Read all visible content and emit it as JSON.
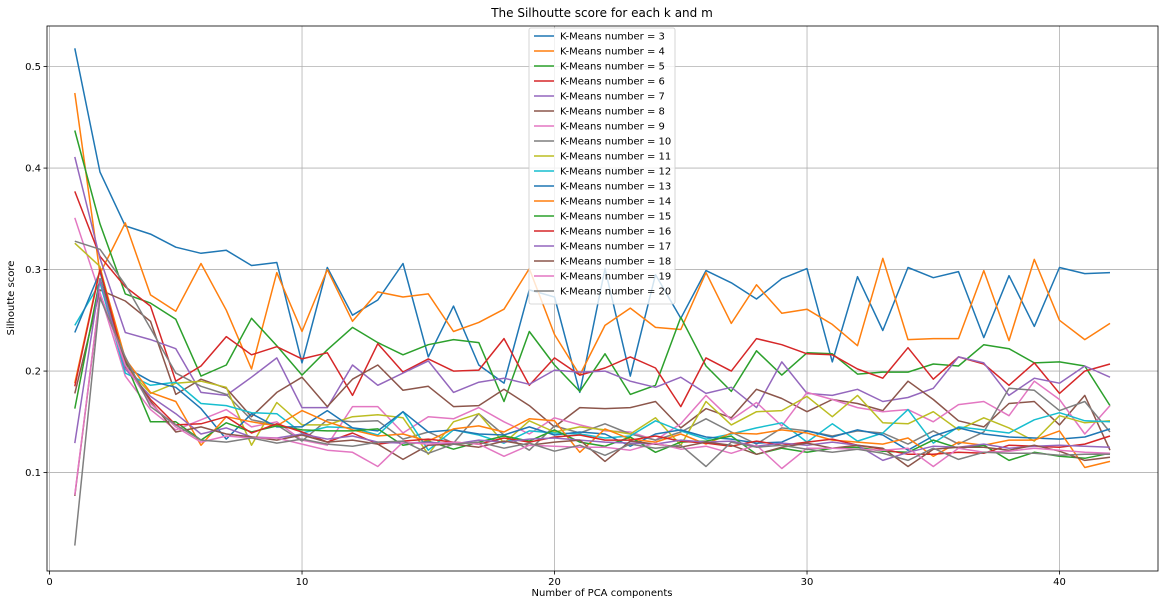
{
  "chart_data": {
    "type": "line",
    "title": "The Silhoutte score for each k and m",
    "xlabel": "Number of PCA components",
    "ylabel": "Silhoutte score",
    "xlim": [
      -0.1,
      43.9
    ],
    "ylim": [
      0.003,
      0.54
    ],
    "xticks": [
      0,
      10,
      20,
      30,
      40
    ],
    "yticks": [
      0.1,
      0.2,
      0.3,
      0.4,
      0.5
    ],
    "grid": true,
    "legend_position": "top-center",
    "x": [
      1,
      2,
      3,
      4,
      5,
      6,
      7,
      8,
      9,
      10,
      11,
      12,
      13,
      14,
      15,
      16,
      17,
      18,
      19,
      20,
      21,
      22,
      23,
      24,
      25,
      26,
      27,
      28,
      29,
      30,
      31,
      32,
      33,
      34,
      35,
      36,
      37,
      38,
      39,
      40,
      41,
      42
    ],
    "series": [
      {
        "name": "K-Means number = 3",
        "color": "#1f77b4",
        "values": [
          0.518,
          0.396,
          0.343,
          0.335,
          0.322,
          0.316,
          0.319,
          0.304,
          0.307,
          0.208,
          0.302,
          0.255,
          0.27,
          0.306,
          0.214,
          0.264,
          0.206,
          0.188,
          0.28,
          0.273,
          0.179,
          0.301,
          0.195,
          0.295,
          0.252,
          0.299,
          0.287,
          0.271,
          0.291,
          0.301,
          0.209,
          0.293,
          0.24,
          0.302,
          0.292,
          0.298,
          0.233,
          0.294,
          0.244,
          0.302,
          0.296,
          0.297
        ]
      },
      {
        "name": "K-Means number = 4",
        "color": "#ff7f0e",
        "values": [
          0.474,
          0.296,
          0.346,
          0.275,
          0.259,
          0.306,
          0.26,
          0.202,
          0.297,
          0.239,
          0.3,
          0.249,
          0.278,
          0.273,
          0.276,
          0.239,
          0.248,
          0.261,
          0.301,
          0.236,
          0.196,
          0.245,
          0.262,
          0.243,
          0.241,
          0.297,
          0.247,
          0.285,
          0.257,
          0.261,
          0.246,
          0.225,
          0.311,
          0.231,
          0.232,
          0.232,
          0.299,
          0.23,
          0.31,
          0.25,
          0.231,
          0.247
        ]
      },
      {
        "name": "K-Means number = 5",
        "color": "#2ca02c",
        "values": [
          0.437,
          0.345,
          0.276,
          0.267,
          0.251,
          0.195,
          0.206,
          0.252,
          0.225,
          0.196,
          0.221,
          0.243,
          0.228,
          0.216,
          0.226,
          0.231,
          0.228,
          0.17,
          0.239,
          0.206,
          0.18,
          0.217,
          0.177,
          0.186,
          0.253,
          0.205,
          0.18,
          0.22,
          0.196,
          0.218,
          0.217,
          0.197,
          0.199,
          0.199,
          0.207,
          0.205,
          0.226,
          0.222,
          0.208,
          0.209,
          0.205,
          0.166
        ]
      },
      {
        "name": "K-Means number = 6",
        "color": "#d62728",
        "values": [
          0.377,
          0.313,
          0.283,
          0.264,
          0.19,
          0.205,
          0.234,
          0.216,
          0.224,
          0.212,
          0.218,
          0.176,
          0.227,
          0.199,
          0.212,
          0.2,
          0.201,
          0.232,
          0.186,
          0.213,
          0.196,
          0.203,
          0.214,
          0.203,
          0.165,
          0.213,
          0.2,
          0.232,
          0.226,
          0.217,
          0.216,
          0.202,
          0.193,
          0.223,
          0.192,
          0.214,
          0.207,
          0.186,
          0.208,
          0.178,
          0.2,
          0.207
        ]
      },
      {
        "name": "K-Means number = 7",
        "color": "#9467bd",
        "values": [
          0.411,
          0.311,
          0.238,
          0.231,
          0.222,
          0.179,
          0.176,
          0.194,
          0.213,
          0.164,
          0.164,
          0.206,
          0.186,
          0.198,
          0.21,
          0.179,
          0.189,
          0.193,
          0.187,
          0.201,
          0.199,
          0.2,
          0.19,
          0.184,
          0.194,
          0.178,
          0.184,
          0.164,
          0.209,
          0.178,
          0.176,
          0.182,
          0.17,
          0.174,
          0.183,
          0.214,
          0.208,
          0.176,
          0.193,
          0.188,
          0.205,
          0.194
        ]
      },
      {
        "name": "K-Means number = 8",
        "color": "#8c564b",
        "values": [
          0.178,
          0.28,
          0.269,
          0.249,
          0.177,
          0.192,
          0.183,
          0.155,
          0.179,
          0.194,
          0.165,
          0.192,
          0.206,
          0.181,
          0.185,
          0.165,
          0.166,
          0.182,
          0.166,
          0.145,
          0.164,
          0.163,
          0.164,
          0.17,
          0.144,
          0.163,
          0.154,
          0.182,
          0.173,
          0.16,
          0.172,
          0.168,
          0.161,
          0.19,
          0.172,
          0.151,
          0.145,
          0.168,
          0.17,
          0.147,
          0.176,
          0.122
        ]
      },
      {
        "name": "K-Means number = 9",
        "color": "#e377c2",
        "values": [
          0.351,
          0.276,
          0.195,
          0.162,
          0.142,
          0.152,
          0.162,
          0.145,
          0.15,
          0.132,
          0.127,
          0.165,
          0.165,
          0.139,
          0.155,
          0.153,
          0.164,
          0.15,
          0.138,
          0.154,
          0.147,
          0.141,
          0.14,
          0.132,
          0.148,
          0.176,
          0.152,
          0.169,
          0.146,
          0.179,
          0.172,
          0.164,
          0.16,
          0.162,
          0.15,
          0.167,
          0.17,
          0.156,
          0.19,
          0.172,
          0.138,
          0.166
        ]
      },
      {
        "name": "K-Means number = 10",
        "color": "#7f7f7f",
        "values": [
          0.328,
          0.32,
          0.285,
          0.242,
          0.198,
          0.185,
          0.177,
          0.152,
          0.147,
          0.131,
          0.152,
          0.15,
          0.151,
          0.133,
          0.14,
          0.129,
          0.158,
          0.137,
          0.122,
          0.146,
          0.139,
          0.148,
          0.138,
          0.132,
          0.14,
          0.153,
          0.14,
          0.128,
          0.144,
          0.141,
          0.136,
          0.141,
          0.139,
          0.128,
          0.141,
          0.128,
          0.14,
          0.183,
          0.181,
          0.161,
          0.17,
          0.14
        ]
      },
      {
        "name": "K-Means number = 11",
        "color": "#bcbd22",
        "values": [
          0.326,
          0.303,
          0.205,
          0.178,
          0.188,
          0.19,
          0.184,
          0.127,
          0.169,
          0.147,
          0.147,
          0.155,
          0.157,
          0.154,
          0.118,
          0.15,
          0.158,
          0.129,
          0.151,
          0.14,
          0.145,
          0.142,
          0.138,
          0.154,
          0.127,
          0.17,
          0.147,
          0.16,
          0.161,
          0.175,
          0.155,
          0.176,
          0.149,
          0.148,
          0.16,
          0.142,
          0.154,
          0.144,
          0.131,
          0.156,
          0.149,
          0.151
        ]
      },
      {
        "name": "K-Means number = 12",
        "color": "#17becf",
        "values": [
          0.245,
          0.287,
          0.198,
          0.186,
          0.189,
          0.168,
          0.166,
          0.159,
          0.158,
          0.139,
          0.145,
          0.144,
          0.137,
          0.16,
          0.122,
          0.142,
          0.137,
          0.129,
          0.141,
          0.139,
          0.138,
          0.134,
          0.136,
          0.151,
          0.141,
          0.133,
          0.138,
          0.144,
          0.149,
          0.13,
          0.148,
          0.131,
          0.139,
          0.162,
          0.129,
          0.145,
          0.142,
          0.139,
          0.152,
          0.159,
          0.151,
          0.15
        ]
      },
      {
        "name": "K-Means number = 13",
        "color": "#1f77b4",
        "values": [
          0.238,
          0.298,
          0.204,
          0.19,
          0.184,
          0.163,
          0.133,
          0.158,
          0.145,
          0.145,
          0.161,
          0.144,
          0.141,
          0.16,
          0.14,
          0.142,
          0.138,
          0.137,
          0.145,
          0.137,
          0.14,
          0.138,
          0.126,
          0.138,
          0.142,
          0.135,
          0.133,
          0.129,
          0.13,
          0.141,
          0.135,
          0.142,
          0.137,
          0.122,
          0.136,
          0.144,
          0.138,
          0.135,
          0.134,
          0.133,
          0.135,
          0.143
        ]
      },
      {
        "name": "K-Means number = 14",
        "color": "#ff7f0e",
        "values": [
          0.188,
          0.301,
          0.212,
          0.179,
          0.17,
          0.127,
          0.155,
          0.15,
          0.146,
          0.161,
          0.15,
          0.142,
          0.136,
          0.138,
          0.131,
          0.143,
          0.146,
          0.14,
          0.153,
          0.151,
          0.12,
          0.143,
          0.133,
          0.13,
          0.138,
          0.128,
          0.139,
          0.138,
          0.142,
          0.139,
          0.132,
          0.13,
          0.128,
          0.134,
          0.116,
          0.13,
          0.127,
          0.132,
          0.132,
          0.141,
          0.105,
          0.111
        ]
      },
      {
        "name": "K-Means number = 15",
        "color": "#2ca02c",
        "values": [
          0.163,
          0.291,
          0.209,
          0.15,
          0.15,
          0.132,
          0.149,
          0.14,
          0.146,
          0.142,
          0.141,
          0.141,
          0.143,
          0.127,
          0.131,
          0.123,
          0.13,
          0.136,
          0.131,
          0.142,
          0.13,
          0.126,
          0.135,
          0.12,
          0.13,
          0.131,
          0.136,
          0.118,
          0.124,
          0.12,
          0.124,
          0.125,
          0.121,
          0.12,
          0.132,
          0.124,
          0.127,
          0.112,
          0.12,
          0.116,
          0.114,
          0.119
        ]
      },
      {
        "name": "K-Means number = 16",
        "color": "#d62728",
        "values": [
          0.185,
          0.3,
          0.205,
          0.172,
          0.147,
          0.148,
          0.155,
          0.139,
          0.148,
          0.14,
          0.13,
          0.139,
          0.128,
          0.131,
          0.133,
          0.13,
          0.128,
          0.134,
          0.13,
          0.135,
          0.137,
          0.132,
          0.132,
          0.136,
          0.131,
          0.129,
          0.126,
          0.131,
          0.127,
          0.13,
          0.133,
          0.127,
          0.123,
          0.118,
          0.118,
          0.12,
          0.119,
          0.127,
          0.126,
          0.125,
          0.128,
          0.136
        ]
      },
      {
        "name": "K-Means number = 17",
        "color": "#9467bd",
        "values": [
          0.129,
          0.29,
          0.202,
          0.175,
          0.158,
          0.138,
          0.144,
          0.135,
          0.134,
          0.138,
          0.133,
          0.136,
          0.13,
          0.129,
          0.13,
          0.128,
          0.132,
          0.13,
          0.133,
          0.134,
          0.132,
          0.13,
          0.129,
          0.128,
          0.132,
          0.13,
          0.131,
          0.126,
          0.129,
          0.127,
          0.13,
          0.127,
          0.112,
          0.12,
          0.126,
          0.125,
          0.128,
          0.124,
          0.126,
          0.127,
          0.126,
          0.125
        ]
      },
      {
        "name": "K-Means number = 18",
        "color": "#8c564b",
        "values": [
          0.077,
          0.276,
          0.21,
          0.17,
          0.14,
          0.145,
          0.138,
          0.135,
          0.132,
          0.137,
          0.13,
          0.132,
          0.128,
          0.113,
          0.127,
          0.128,
          0.125,
          0.131,
          0.127,
          0.13,
          0.132,
          0.111,
          0.131,
          0.128,
          0.125,
          0.13,
          0.127,
          0.118,
          0.125,
          0.129,
          0.124,
          0.127,
          0.124,
          0.106,
          0.123,
          0.125,
          0.125,
          0.122,
          0.127,
          0.121,
          0.112,
          0.115
        ]
      },
      {
        "name": "K-Means number = 19",
        "color": "#e377c2",
        "values": [
          0.078,
          0.277,
          0.206,
          0.168,
          0.145,
          0.13,
          0.136,
          0.134,
          0.134,
          0.128,
          0.122,
          0.12,
          0.106,
          0.13,
          0.128,
          0.13,
          0.128,
          0.116,
          0.127,
          0.126,
          0.125,
          0.125,
          0.122,
          0.129,
          0.123,
          0.126,
          0.119,
          0.127,
          0.104,
          0.124,
          0.124,
          0.123,
          0.122,
          0.124,
          0.106,
          0.124,
          0.12,
          0.121,
          0.124,
          0.122,
          0.12,
          0.119
        ]
      },
      {
        "name": "K-Means number = 20",
        "color": "#7f7f7f",
        "values": [
          0.028,
          0.272,
          0.214,
          0.165,
          0.147,
          0.132,
          0.13,
          0.134,
          0.129,
          0.133,
          0.128,
          0.126,
          0.13,
          0.131,
          0.119,
          0.128,
          0.13,
          0.124,
          0.129,
          0.121,
          0.127,
          0.117,
          0.128,
          0.124,
          0.127,
          0.106,
          0.13,
          0.125,
          0.127,
          0.123,
          0.12,
          0.123,
          0.119,
          0.112,
          0.124,
          0.113,
          0.12,
          0.119,
          0.119,
          0.117,
          0.118,
          0.118
        ]
      }
    ]
  }
}
